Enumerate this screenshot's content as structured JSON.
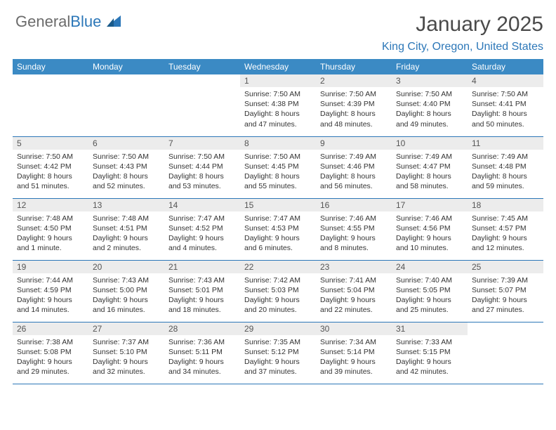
{
  "logo": {
    "text_gray": "General",
    "text_blue": "Blue"
  },
  "header": {
    "title": "January 2025",
    "location": "King City, Oregon, United States"
  },
  "colors": {
    "header_bg": "#3b8ac4",
    "accent": "#2c77b8",
    "daynum_bg": "#ececec",
    "text": "#333333"
  },
  "day_labels": [
    "Sunday",
    "Monday",
    "Tuesday",
    "Wednesday",
    "Thursday",
    "Friday",
    "Saturday"
  ],
  "weeks": [
    [
      null,
      null,
      null,
      {
        "n": "1",
        "l1": "Sunrise: 7:50 AM",
        "l2": "Sunset: 4:38 PM",
        "l3": "Daylight: 8 hours",
        "l4": "and 47 minutes."
      },
      {
        "n": "2",
        "l1": "Sunrise: 7:50 AM",
        "l2": "Sunset: 4:39 PM",
        "l3": "Daylight: 8 hours",
        "l4": "and 48 minutes."
      },
      {
        "n": "3",
        "l1": "Sunrise: 7:50 AM",
        "l2": "Sunset: 4:40 PM",
        "l3": "Daylight: 8 hours",
        "l4": "and 49 minutes."
      },
      {
        "n": "4",
        "l1": "Sunrise: 7:50 AM",
        "l2": "Sunset: 4:41 PM",
        "l3": "Daylight: 8 hours",
        "l4": "and 50 minutes."
      }
    ],
    [
      {
        "n": "5",
        "l1": "Sunrise: 7:50 AM",
        "l2": "Sunset: 4:42 PM",
        "l3": "Daylight: 8 hours",
        "l4": "and 51 minutes."
      },
      {
        "n": "6",
        "l1": "Sunrise: 7:50 AM",
        "l2": "Sunset: 4:43 PM",
        "l3": "Daylight: 8 hours",
        "l4": "and 52 minutes."
      },
      {
        "n": "7",
        "l1": "Sunrise: 7:50 AM",
        "l2": "Sunset: 4:44 PM",
        "l3": "Daylight: 8 hours",
        "l4": "and 53 minutes."
      },
      {
        "n": "8",
        "l1": "Sunrise: 7:50 AM",
        "l2": "Sunset: 4:45 PM",
        "l3": "Daylight: 8 hours",
        "l4": "and 55 minutes."
      },
      {
        "n": "9",
        "l1": "Sunrise: 7:49 AM",
        "l2": "Sunset: 4:46 PM",
        "l3": "Daylight: 8 hours",
        "l4": "and 56 minutes."
      },
      {
        "n": "10",
        "l1": "Sunrise: 7:49 AM",
        "l2": "Sunset: 4:47 PM",
        "l3": "Daylight: 8 hours",
        "l4": "and 58 minutes."
      },
      {
        "n": "11",
        "l1": "Sunrise: 7:49 AM",
        "l2": "Sunset: 4:48 PM",
        "l3": "Daylight: 8 hours",
        "l4": "and 59 minutes."
      }
    ],
    [
      {
        "n": "12",
        "l1": "Sunrise: 7:48 AM",
        "l2": "Sunset: 4:50 PM",
        "l3": "Daylight: 9 hours",
        "l4": "and 1 minute."
      },
      {
        "n": "13",
        "l1": "Sunrise: 7:48 AM",
        "l2": "Sunset: 4:51 PM",
        "l3": "Daylight: 9 hours",
        "l4": "and 2 minutes."
      },
      {
        "n": "14",
        "l1": "Sunrise: 7:47 AM",
        "l2": "Sunset: 4:52 PM",
        "l3": "Daylight: 9 hours",
        "l4": "and 4 minutes."
      },
      {
        "n": "15",
        "l1": "Sunrise: 7:47 AM",
        "l2": "Sunset: 4:53 PM",
        "l3": "Daylight: 9 hours",
        "l4": "and 6 minutes."
      },
      {
        "n": "16",
        "l1": "Sunrise: 7:46 AM",
        "l2": "Sunset: 4:55 PM",
        "l3": "Daylight: 9 hours",
        "l4": "and 8 minutes."
      },
      {
        "n": "17",
        "l1": "Sunrise: 7:46 AM",
        "l2": "Sunset: 4:56 PM",
        "l3": "Daylight: 9 hours",
        "l4": "and 10 minutes."
      },
      {
        "n": "18",
        "l1": "Sunrise: 7:45 AM",
        "l2": "Sunset: 4:57 PM",
        "l3": "Daylight: 9 hours",
        "l4": "and 12 minutes."
      }
    ],
    [
      {
        "n": "19",
        "l1": "Sunrise: 7:44 AM",
        "l2": "Sunset: 4:59 PM",
        "l3": "Daylight: 9 hours",
        "l4": "and 14 minutes."
      },
      {
        "n": "20",
        "l1": "Sunrise: 7:43 AM",
        "l2": "Sunset: 5:00 PM",
        "l3": "Daylight: 9 hours",
        "l4": "and 16 minutes."
      },
      {
        "n": "21",
        "l1": "Sunrise: 7:43 AM",
        "l2": "Sunset: 5:01 PM",
        "l3": "Daylight: 9 hours",
        "l4": "and 18 minutes."
      },
      {
        "n": "22",
        "l1": "Sunrise: 7:42 AM",
        "l2": "Sunset: 5:03 PM",
        "l3": "Daylight: 9 hours",
        "l4": "and 20 minutes."
      },
      {
        "n": "23",
        "l1": "Sunrise: 7:41 AM",
        "l2": "Sunset: 5:04 PM",
        "l3": "Daylight: 9 hours",
        "l4": "and 22 minutes."
      },
      {
        "n": "24",
        "l1": "Sunrise: 7:40 AM",
        "l2": "Sunset: 5:05 PM",
        "l3": "Daylight: 9 hours",
        "l4": "and 25 minutes."
      },
      {
        "n": "25",
        "l1": "Sunrise: 7:39 AM",
        "l2": "Sunset: 5:07 PM",
        "l3": "Daylight: 9 hours",
        "l4": "and 27 minutes."
      }
    ],
    [
      {
        "n": "26",
        "l1": "Sunrise: 7:38 AM",
        "l2": "Sunset: 5:08 PM",
        "l3": "Daylight: 9 hours",
        "l4": "and 29 minutes."
      },
      {
        "n": "27",
        "l1": "Sunrise: 7:37 AM",
        "l2": "Sunset: 5:10 PM",
        "l3": "Daylight: 9 hours",
        "l4": "and 32 minutes."
      },
      {
        "n": "28",
        "l1": "Sunrise: 7:36 AM",
        "l2": "Sunset: 5:11 PM",
        "l3": "Daylight: 9 hours",
        "l4": "and 34 minutes."
      },
      {
        "n": "29",
        "l1": "Sunrise: 7:35 AM",
        "l2": "Sunset: 5:12 PM",
        "l3": "Daylight: 9 hours",
        "l4": "and 37 minutes."
      },
      {
        "n": "30",
        "l1": "Sunrise: 7:34 AM",
        "l2": "Sunset: 5:14 PM",
        "l3": "Daylight: 9 hours",
        "l4": "and 39 minutes."
      },
      {
        "n": "31",
        "l1": "Sunrise: 7:33 AM",
        "l2": "Sunset: 5:15 PM",
        "l3": "Daylight: 9 hours",
        "l4": "and 42 minutes."
      },
      null
    ]
  ]
}
